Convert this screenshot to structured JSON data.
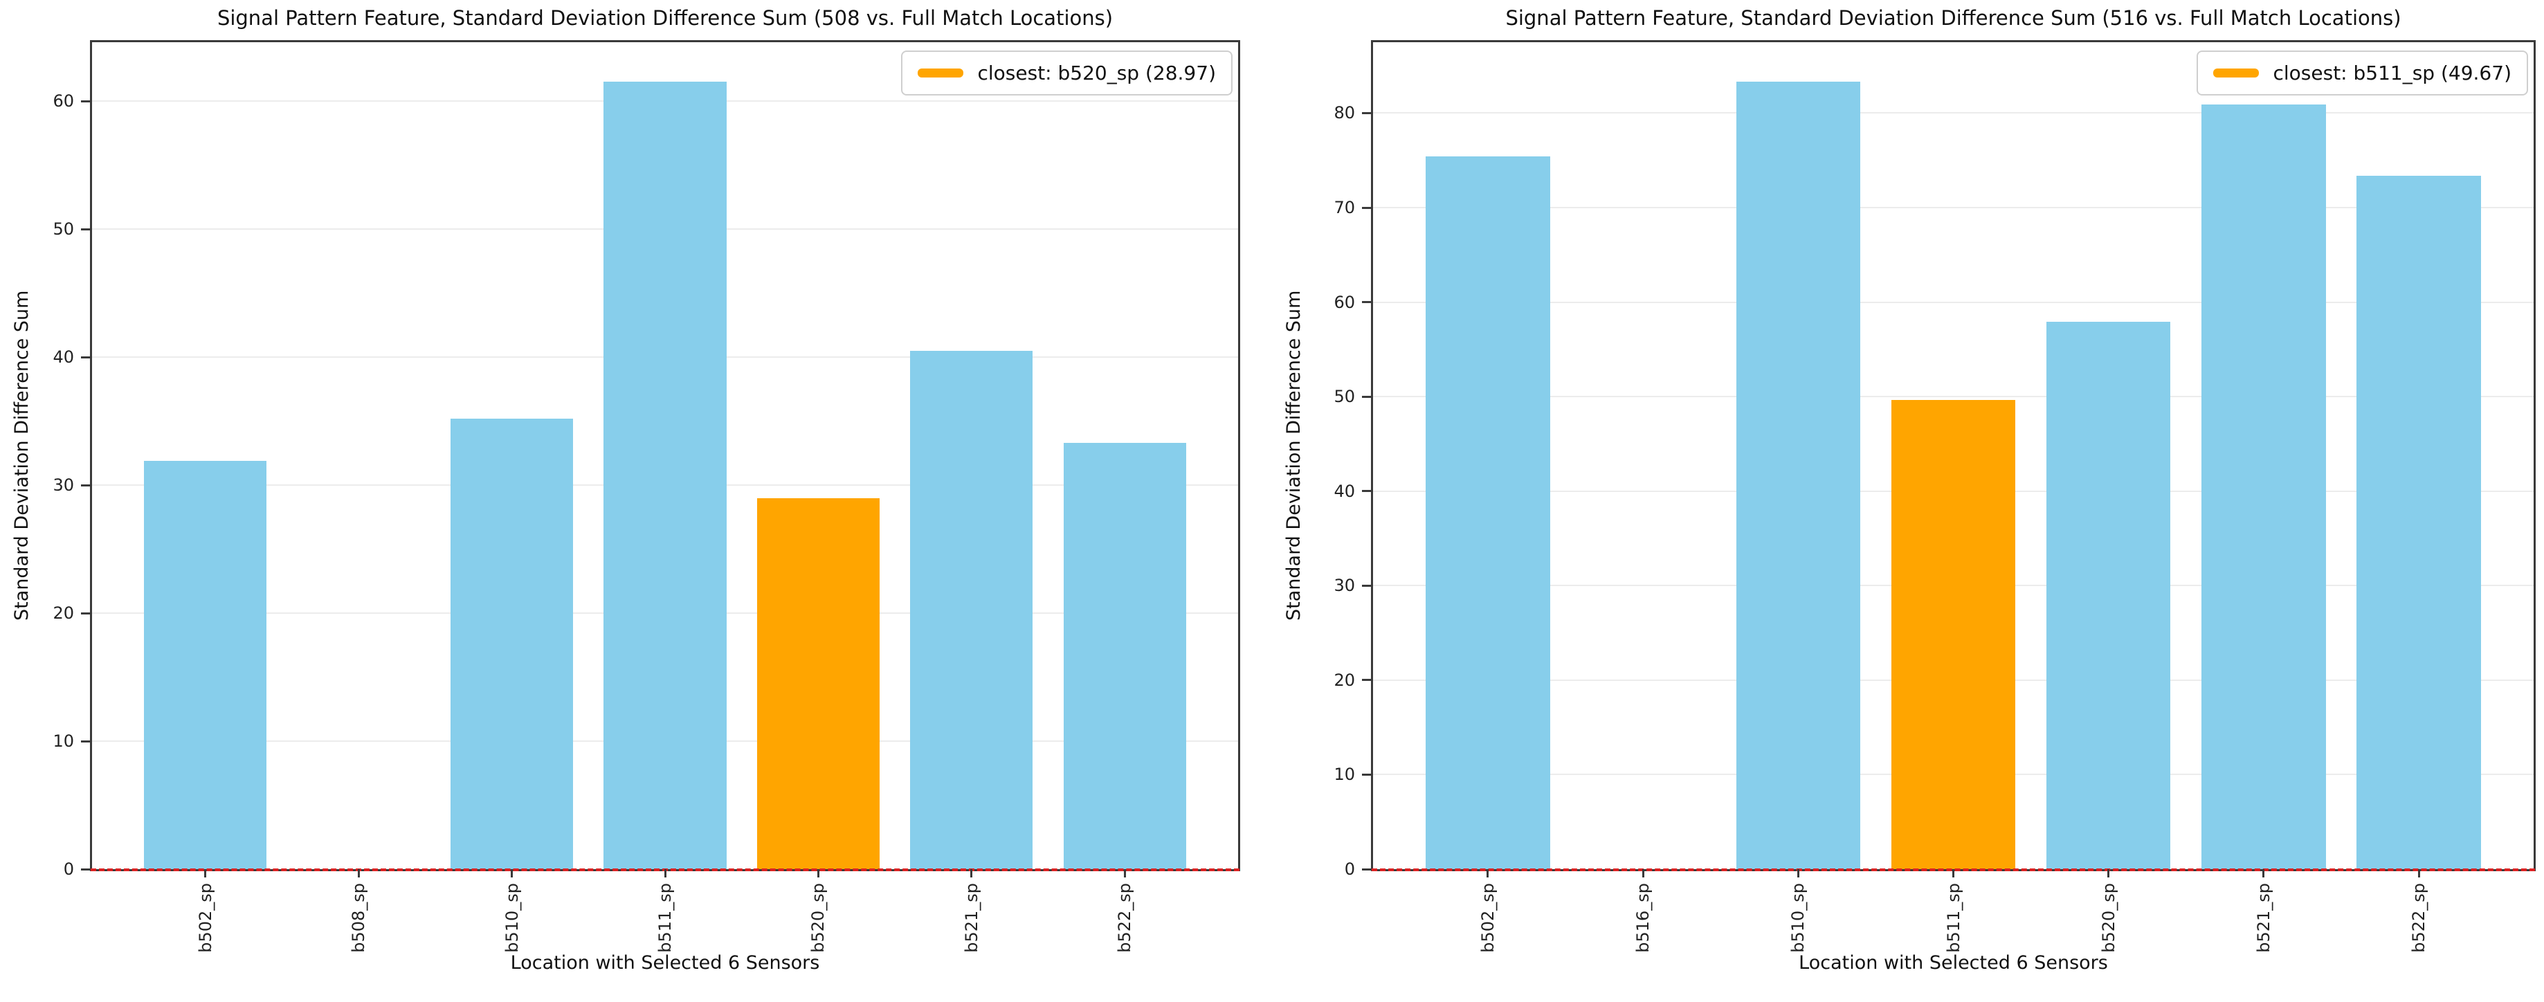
{
  "page": {
    "background": "#ffffff"
  },
  "chart_data": [
    {
      "type": "bar",
      "title": "Signal Pattern Feature, Standard Deviation Difference Sum (508 vs. Full Match Locations)",
      "xlabel": "Location with Selected 6 Sensors",
      "ylabel": "Standard Deviation Difference Sum",
      "categories": [
        "b502_sp",
        "b508_sp",
        "b510_sp",
        "b511_sp",
        "b520_sp",
        "b521_sp",
        "b522_sp"
      ],
      "values": [
        31.9,
        0.0,
        35.2,
        61.5,
        28.97,
        40.5,
        33.3
      ],
      "highlight_index": 4,
      "highlight_value_label": "28.97",
      "bar_color": "#87CEEB",
      "highlight_color": "#FFA500",
      "legend_label": "closest: b520_sp (28.97)",
      "legend_position": "upper right",
      "bar_width": 0.8,
      "xlim": [
        -0.74,
        6.74
      ],
      "ylim": [
        0,
        64.6
      ],
      "yticks": [
        0,
        10,
        20,
        30,
        40,
        50,
        60
      ],
      "grid": true,
      "zero_line_color": "#dd2222",
      "zero_line_style": "dashed"
    },
    {
      "type": "bar",
      "title": "Signal Pattern Feature, Standard Deviation Difference Sum (516 vs. Full Match Locations)",
      "xlabel": "Location with Selected 6 Sensors",
      "ylabel": "Standard Deviation Difference Sum",
      "categories": [
        "b502_sp",
        "b516_sp",
        "b510_sp",
        "b511_sp",
        "b520_sp",
        "b521_sp",
        "b522_sp"
      ],
      "values": [
        75.4,
        0.0,
        83.3,
        49.67,
        57.9,
        80.9,
        73.4
      ],
      "highlight_index": 3,
      "highlight_value_label": "49.67",
      "bar_color": "#87CEEB",
      "highlight_color": "#FFA500",
      "legend_label": "closest: b511_sp (49.67)",
      "legend_position": "upper right",
      "bar_width": 0.8,
      "xlim": [
        -0.74,
        6.74
      ],
      "ylim": [
        0,
        87.5
      ],
      "yticks": [
        0,
        10,
        20,
        30,
        40,
        50,
        60,
        70,
        80
      ],
      "grid": true,
      "zero_line_color": "#dd2222",
      "zero_line_style": "dashed"
    }
  ]
}
